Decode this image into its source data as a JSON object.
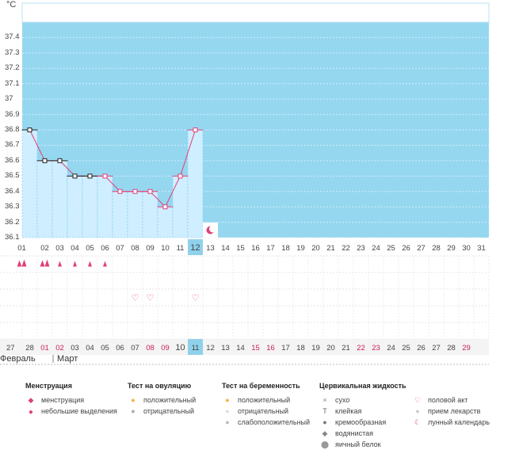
{
  "unit_label": "°C",
  "colors": {
    "sky": "#96d7f0",
    "bar": "#cfeeff",
    "line": "#e0407a",
    "marker_red": "#e0407a",
    "marker_black": "#222222",
    "highlight": "#8fd1ea",
    "red_text": "#cc2255"
  },
  "chart_data": {
    "type": "line",
    "title": "",
    "xlabel": "",
    "ylabel": "°C",
    "ylim": [
      36.1,
      37.5
    ],
    "yticks": [
      "36.1",
      "36.2",
      "36.3",
      "36.4",
      "36.5",
      "36.6",
      "36.7",
      "36.8",
      "36.9",
      "37",
      "37.1",
      "37.2",
      "37.3",
      "37.4"
    ],
    "days": [
      "01",
      "02",
      "03",
      "04",
      "05",
      "06",
      "07",
      "08",
      "09",
      "10",
      "11",
      "12",
      "13",
      "14",
      "15",
      "16",
      "17",
      "18",
      "19",
      "20",
      "21",
      "22",
      "23",
      "24",
      "25",
      "26",
      "27",
      "28",
      "29",
      "30",
      "31"
    ],
    "series": [
      {
        "values": [
          36.8,
          36.6,
          36.6,
          36.5,
          36.5,
          36.5,
          36.4,
          36.4,
          36.4,
          36.3,
          36.5,
          36.8
        ],
        "marker_colors": [
          "black",
          "black",
          "black",
          "black",
          "black",
          "red",
          "red",
          "red",
          "red",
          "red",
          "red",
          "red"
        ]
      }
    ],
    "highlight_day": "12",
    "moon_day": "13"
  },
  "symbol_rows": {
    "menstruation": [
      "big",
      "big",
      "small",
      "small",
      "small",
      "small"
    ],
    "intercourse_days": [
      8,
      9,
      12
    ]
  },
  "bottom_dates": [
    {
      "d": "27",
      "red": false
    },
    {
      "d": "28",
      "red": false
    },
    {
      "d": "01",
      "red": true
    },
    {
      "d": "02",
      "red": true
    },
    {
      "d": "03",
      "red": false
    },
    {
      "d": "04",
      "red": false
    },
    {
      "d": "05",
      "red": false
    },
    {
      "d": "06",
      "red": false
    },
    {
      "d": "07",
      "red": false
    },
    {
      "d": "08",
      "red": true
    },
    {
      "d": "09",
      "red": true
    },
    {
      "d": "10",
      "red": false
    },
    {
      "d": "11",
      "red": false
    },
    {
      "d": "12",
      "red": false
    },
    {
      "d": "13",
      "red": false
    },
    {
      "d": "14",
      "red": false
    },
    {
      "d": "15",
      "red": true
    },
    {
      "d": "16",
      "red": true
    },
    {
      "d": "17",
      "red": false
    },
    {
      "d": "18",
      "red": false
    },
    {
      "d": "19",
      "red": false
    },
    {
      "d": "20",
      "red": false
    },
    {
      "d": "21",
      "red": false
    },
    {
      "d": "22",
      "red": true
    },
    {
      "d": "23",
      "red": true
    },
    {
      "d": "24",
      "red": false
    },
    {
      "d": "25",
      "red": false
    },
    {
      "d": "26",
      "red": false
    },
    {
      "d": "27",
      "red": false
    },
    {
      "d": "28",
      "red": false
    },
    {
      "d": "29",
      "red": true
    }
  ],
  "bottom_highlight_index": 11,
  "months": {
    "prev": "Февраль",
    "current": "Март"
  },
  "legend": {
    "menstruation": {
      "title": "Менструация",
      "items": [
        "менструация",
        "небольшие выделения"
      ]
    },
    "ovulation": {
      "title": "Тест на овуляцию",
      "items": [
        "положительный",
        "отрицательный"
      ]
    },
    "pregnancy": {
      "title": "Тест на беременность",
      "items": [
        "положительный",
        "отрицательный",
        "слабоположительный"
      ]
    },
    "cervical": {
      "title": "Цервикальная жидкость",
      "items": [
        "сухо",
        "клейкая",
        "кремообразная",
        "водянистая",
        "яичный белок"
      ]
    },
    "other": {
      "items": [
        "половой акт",
        "прием лекарств",
        "лунный календарь"
      ]
    }
  }
}
